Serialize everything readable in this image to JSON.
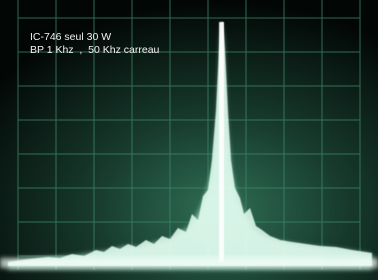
{
  "overlay": {
    "line1": "IC-746 seul 30 W",
    "line2": "BP 1 Khz  ,  50 Khz carreau"
  }
}
